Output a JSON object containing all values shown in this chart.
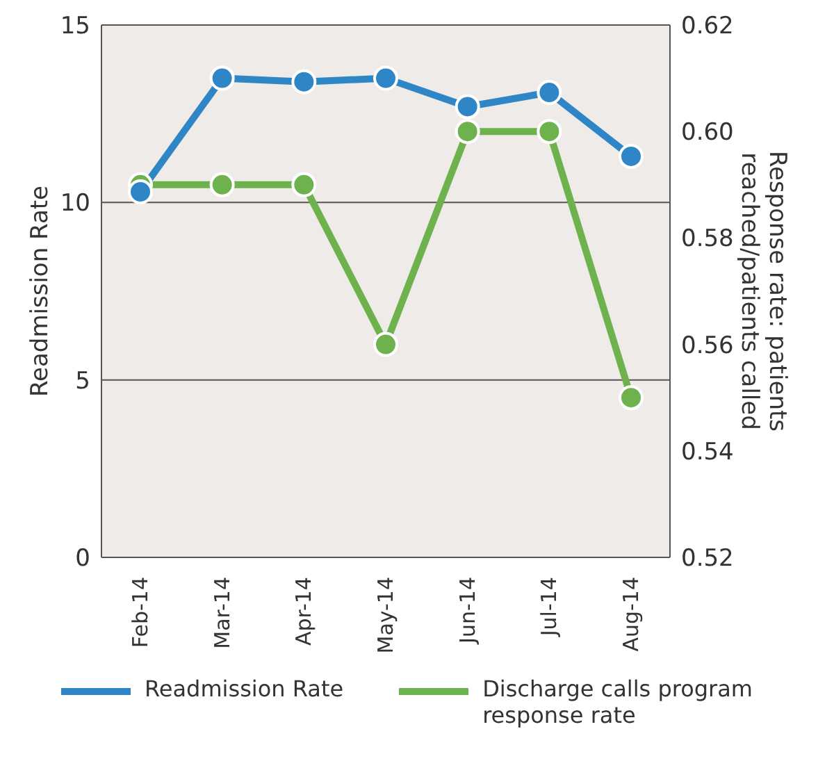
{
  "chart_data": {
    "type": "line",
    "categories": [
      "Feb-14",
      "Mar-14",
      "Apr-14",
      "May-14",
      "Jun-14",
      "Jul-14",
      "Aug-14"
    ],
    "series": [
      {
        "name": "Readmission Rate",
        "color": "#2f86c6",
        "values": [
          10.3,
          13.5,
          13.4,
          13.5,
          12.7,
          13.1,
          11.3
        ]
      },
      {
        "name": "Discharge calls program response rate",
        "color": "#6db24d",
        "values": [
          0.59,
          0.59,
          0.59,
          0.56,
          0.6,
          0.6,
          0.55
        ],
        "axis": "y2"
      }
    ],
    "ylabel": "Readmission Rate",
    "y2label": "Response rate: patients reached/patients called",
    "ylim": [
      0,
      15
    ],
    "yticks": [
      0,
      5,
      10,
      15
    ],
    "y2lim": [
      0.52,
      0.62
    ],
    "y2ticks": [
      0.52,
      0.54,
      0.56,
      0.58,
      {
        "value": 0.6,
        "label": "0.60"
      },
      0.62
    ],
    "grid": "y",
    "legend": "bottom",
    "marker": "circle",
    "line_style": "solid"
  }
}
